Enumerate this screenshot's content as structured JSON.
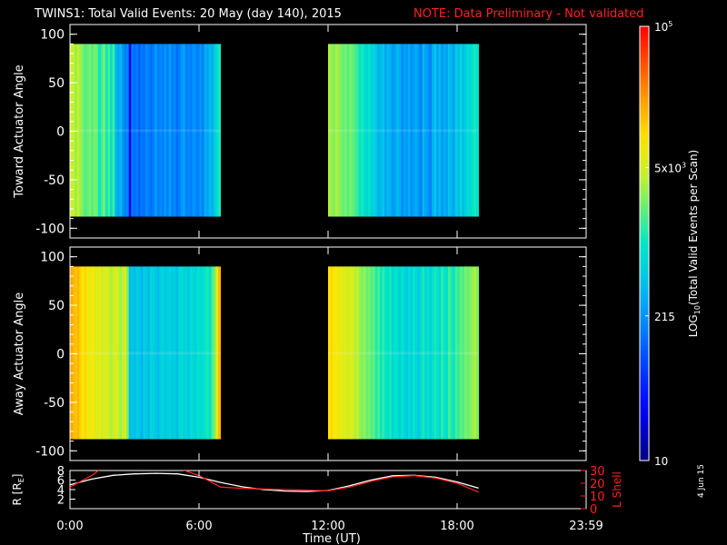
{
  "header": {
    "title": "TWINS1: Total Valid Events: 20 May (day 140), 2015",
    "note": "NOTE: Data Preliminary - Not validated"
  },
  "stamp": "4 Jun 15",
  "colors": {
    "background": "#000000",
    "axes": "#ffffff",
    "note": "#ff2020",
    "r_line": "#ffffff",
    "lshell_line": "#ff2020"
  },
  "chart_data": [
    {
      "type": "heatmap",
      "panel": "top",
      "ylabel": "Toward Actuator Angle",
      "ylim": [
        -110,
        110
      ],
      "yticks": [
        100,
        50,
        0,
        -50,
        -100
      ],
      "ytick_labels": [
        "100",
        "50",
        "0",
        "-50",
        "-100"
      ],
      "data_y_range": [
        -88,
        90
      ],
      "xlim": [
        0,
        24
      ],
      "data_blocks": [
        {
          "start_hour": 0.0,
          "end_hour": 7.0
        },
        {
          "start_hour": 12.0,
          "end_hour": 19.0
        }
      ],
      "column_levels_per_block": [
        [
          0.66,
          0.66,
          0.62,
          0.66,
          0.62,
          0.6,
          0.56,
          0.58,
          0.6,
          0.56,
          0.6,
          0.58,
          0.5,
          0.55,
          0.6,
          0.5,
          0.56,
          0.48,
          0.55,
          0.4,
          0.36,
          0.4,
          0.34,
          0.3,
          0.32,
          0.1,
          0.3,
          0.28,
          0.3,
          0.26,
          0.3,
          0.28,
          0.32,
          0.3,
          0.28,
          0.3,
          0.35,
          0.3,
          0.32,
          0.3,
          0.34,
          0.3,
          0.36,
          0.3,
          0.32,
          0.28,
          0.3,
          0.34,
          0.36,
          0.3,
          0.32,
          0.3,
          0.34,
          0.32,
          0.3,
          0.34,
          0.3,
          0.38,
          0.36,
          0.4,
          0.38,
          0.42,
          0.48,
          0.52
        ],
        [
          0.64,
          0.62,
          0.6,
          0.64,
          0.62,
          0.6,
          0.58,
          0.6,
          0.56,
          0.6,
          0.58,
          0.56,
          0.54,
          0.5,
          0.52,
          0.48,
          0.46,
          0.5,
          0.44,
          0.46,
          0.42,
          0.38,
          0.4,
          0.42,
          0.36,
          0.4,
          0.38,
          0.34,
          0.36,
          0.4,
          0.38,
          0.32,
          0.36,
          0.34,
          0.38,
          0.32,
          0.36,
          0.38,
          0.34,
          0.3,
          0.4,
          0.36,
          0.34,
          0.3,
          0.38,
          0.42,
          0.36,
          0.4,
          0.34,
          0.38,
          0.36,
          0.42,
          0.38,
          0.36,
          0.44,
          0.4,
          0.46,
          0.4,
          0.44,
          0.48,
          0.46,
          0.5,
          0.52,
          0.48
        ]
      ]
    },
    {
      "type": "heatmap",
      "panel": "middle",
      "ylabel": "Away Actuator Angle",
      "ylim": [
        -110,
        110
      ],
      "yticks": [
        100,
        50,
        0,
        -50,
        -100
      ],
      "ytick_labels": [
        "100",
        "50",
        "0",
        "-50",
        "-100"
      ],
      "data_y_range": [
        -88,
        90
      ],
      "xlim": [
        0,
        24
      ],
      "data_blocks": [
        {
          "start_hour": 0.0,
          "end_hour": 7.0
        },
        {
          "start_hour": 12.0,
          "end_hour": 19.0
        }
      ],
      "column_levels_per_block": [
        [
          0.82,
          0.8,
          0.78,
          0.8,
          0.76,
          0.74,
          0.76,
          0.72,
          0.7,
          0.74,
          0.7,
          0.68,
          0.72,
          0.66,
          0.68,
          0.7,
          0.66,
          0.64,
          0.66,
          0.7,
          0.66,
          0.62,
          0.66,
          0.68,
          0.6,
          0.4,
          0.42,
          0.4,
          0.44,
          0.42,
          0.38,
          0.44,
          0.42,
          0.4,
          0.46,
          0.44,
          0.42,
          0.4,
          0.44,
          0.46,
          0.42,
          0.44,
          0.46,
          0.42,
          0.44,
          0.4,
          0.46,
          0.48,
          0.44,
          0.46,
          0.42,
          0.48,
          0.46,
          0.44,
          0.5,
          0.46,
          0.48,
          0.5,
          0.52,
          0.48,
          0.56,
          0.6,
          0.7,
          0.8
        ],
        [
          0.74,
          0.76,
          0.72,
          0.74,
          0.7,
          0.72,
          0.68,
          0.7,
          0.66,
          0.7,
          0.68,
          0.64,
          0.66,
          0.62,
          0.6,
          0.62,
          0.58,
          0.6,
          0.56,
          0.58,
          0.52,
          0.56,
          0.5,
          0.54,
          0.5,
          0.48,
          0.52,
          0.46,
          0.5,
          0.48,
          0.44,
          0.5,
          0.46,
          0.42,
          0.48,
          0.44,
          0.5,
          0.46,
          0.42,
          0.48,
          0.52,
          0.46,
          0.5,
          0.44,
          0.48,
          0.52,
          0.5,
          0.46,
          0.54,
          0.5,
          0.48,
          0.56,
          0.52,
          0.5,
          0.56,
          0.54,
          0.58,
          0.56,
          0.6,
          0.58,
          0.6,
          0.62,
          0.64,
          0.6
        ]
      ]
    },
    {
      "type": "line",
      "panel": "bottom",
      "ylabel": "R [R",
      "ylabel_sub": "E",
      "ylabel_close": "]",
      "ylim": [
        0,
        8
      ],
      "yticks": [
        2,
        4,
        6,
        8
      ],
      "ytick_labels": [
        "2",
        "4",
        "6",
        "8"
      ],
      "right_ylabel": "L Shell",
      "right_ylim": [
        0,
        30
      ],
      "right_yticks": [
        0,
        10,
        20,
        30
      ],
      "right_ytick_labels": [
        "0",
        "10",
        "20",
        "30"
      ],
      "xlabel": "Time (UT)",
      "xlim": [
        0,
        24
      ],
      "xticks": [
        0,
        6,
        12,
        18,
        24
      ],
      "xtick_labels": [
        "0:00",
        "6:00",
        "12:00",
        "18:00",
        "23:59"
      ],
      "series": [
        {
          "axis": "left",
          "x": [
            0,
            1,
            2,
            3,
            4,
            5,
            6,
            7,
            8,
            9,
            10,
            11,
            12,
            13,
            14,
            15,
            16,
            17,
            18,
            19
          ],
          "y": [
            5.0,
            6.2,
            7.0,
            7.3,
            7.4,
            7.3,
            6.6,
            5.5,
            4.6,
            4.0,
            3.7,
            3.6,
            3.8,
            4.8,
            6.0,
            6.9,
            7.0,
            6.6,
            5.6,
            4.3
          ]
        },
        {
          "axis": "right",
          "x": [
            0,
            1,
            1.5,
            2,
            4.5,
            5,
            6,
            7,
            8,
            9,
            10,
            11,
            12,
            13,
            14,
            15,
            16,
            17,
            18,
            19
          ],
          "y": [
            17,
            26,
            32,
            34,
            34,
            32,
            26,
            17,
            16,
            15.5,
            15,
            14.5,
            14,
            17,
            21.5,
            25,
            26,
            24,
            20,
            13
          ]
        }
      ]
    }
  ],
  "colorbar": {
    "ylabel": "LOG",
    "ylabel_sub": "10",
    "ylabel_rest": "(Total Valid Events per Scan)",
    "range": [
      10,
      100000
    ],
    "scale": "log",
    "labels": [
      {
        "text": "10",
        "value": 10
      },
      {
        "text": "215",
        "value": 215
      },
      {
        "text": "5x10",
        "sup": "3",
        "value": 5000
      },
      {
        "text": "10",
        "sup": "5",
        "value": 100000
      }
    ]
  }
}
